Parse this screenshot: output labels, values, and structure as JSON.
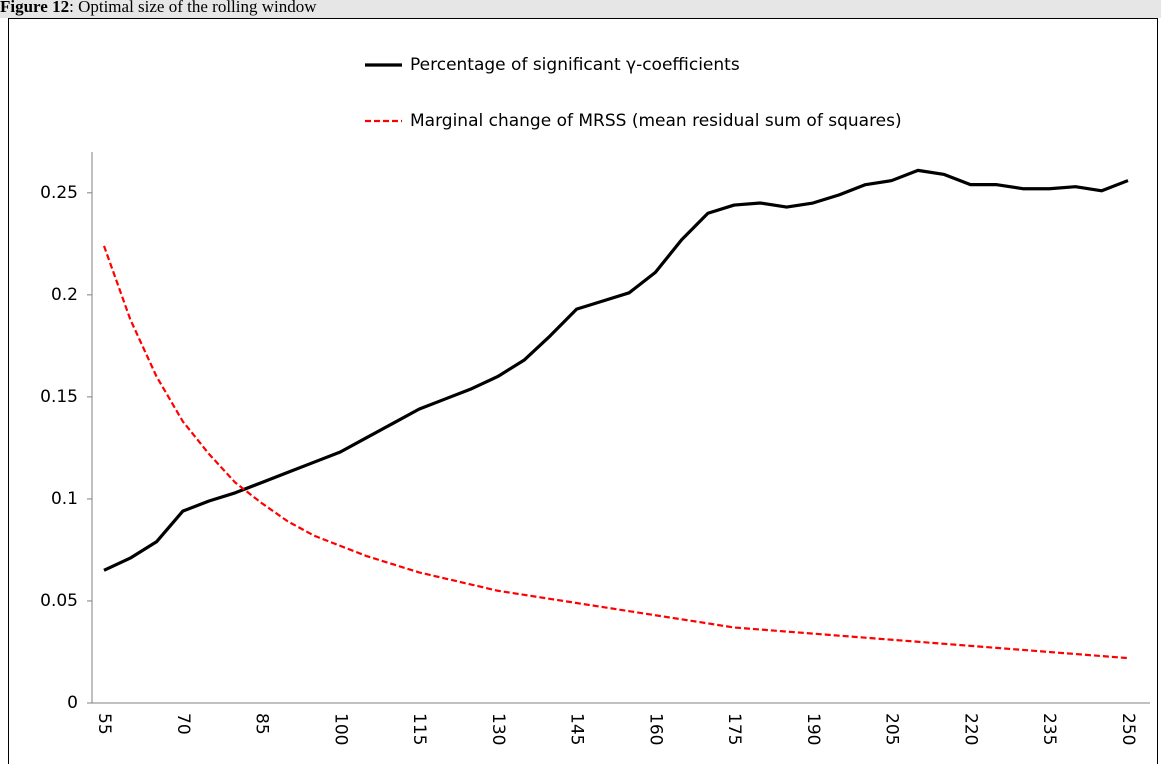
{
  "figure": {
    "label": "Figure 12",
    "caption": ": Optimal size of the rolling window"
  },
  "chart_data": {
    "type": "line",
    "categories": [
      "55",
      null,
      null,
      "70",
      null,
      null,
      "85",
      null,
      null,
      "100",
      null,
      null,
      "115",
      null,
      null,
      "130",
      null,
      null,
      "145",
      null,
      null,
      "160",
      null,
      null,
      "175",
      null,
      null,
      "190",
      null,
      null,
      "205",
      null,
      null,
      "220",
      null,
      null,
      "235",
      null,
      null,
      "250"
    ],
    "series": [
      {
        "name": "Percentage of significant γ-coefficients",
        "color": "#000000",
        "style": "solid",
        "values": [
          0.065,
          0.071,
          0.079,
          0.094,
          0.099,
          0.103,
          0.108,
          0.113,
          0.118,
          0.123,
          0.13,
          0.137,
          0.144,
          0.149,
          0.154,
          0.16,
          0.168,
          0.18,
          0.193,
          0.197,
          0.201,
          0.211,
          0.227,
          0.24,
          0.244,
          0.245,
          0.243,
          0.245,
          0.249,
          0.254,
          0.256,
          0.261,
          0.259,
          0.254,
          0.254,
          0.252,
          0.252,
          0.253,
          0.251,
          0.256
        ]
      },
      {
        "name": "Marginal change of MRSS (mean residual sum of squares)",
        "color": "#ff0000",
        "style": "dashed",
        "values": [
          0.224,
          0.188,
          0.16,
          0.138,
          0.122,
          0.108,
          0.098,
          0.089,
          0.082,
          0.077,
          0.072,
          0.068,
          0.064,
          0.061,
          0.058,
          0.055,
          0.053,
          0.051,
          0.049,
          0.047,
          0.045,
          0.043,
          0.041,
          0.039,
          0.037,
          0.036,
          0.035,
          0.034,
          0.033,
          0.032,
          0.031,
          0.03,
          0.029,
          0.028,
          0.027,
          0.026,
          0.025,
          0.024,
          0.023,
          0.022
        ]
      }
    ],
    "ylim": [
      0,
      0.27
    ],
    "yticks": [
      0,
      0.05,
      0.1,
      0.15,
      0.2,
      0.25
    ],
    "grid": false,
    "legend": "top"
  }
}
